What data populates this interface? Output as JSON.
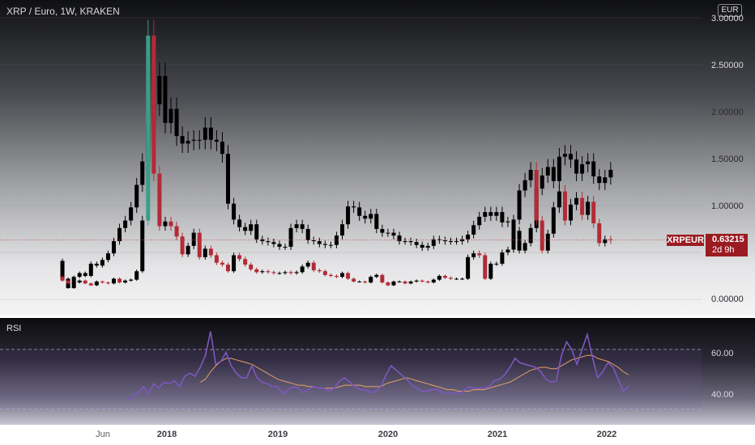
{
  "header": {
    "title": "XRP / Euro, 1W, KRAKEN",
    "currency": "EUR"
  },
  "indicator": {
    "name": "RSI"
  },
  "price_tag": {
    "symbol": "XRPEUR",
    "price": "0.63215",
    "countdown": "2d 9h"
  },
  "colors": {
    "up_candle": "#000000",
    "down_candle": "#b22b35",
    "spike_candle": "#3b9e87",
    "rsi_line": "#7e57c2",
    "rsi_ma": "#e6a068",
    "last_price_line": "#c0525a"
  },
  "chart_data": [
    {
      "type": "line",
      "series": [
        {
          "values": [
            0.41,
            0.22,
            0.12,
            0.24,
            0.28,
            0.25,
            0.38,
            0.36,
            0.42,
            0.49,
            0.62,
            0.76,
            0.84,
            0.98,
            1.22,
            1.47,
            1.85,
            2.08,
            2.38,
            1.88,
            2.03,
            1.74,
            1.66,
            1.69,
            1.7,
            1.7,
            1.83,
            1.7,
            1.68,
            1.55,
            1.02,
            0.85,
            0.77,
            0.73,
            0.8,
            0.64,
            0.62,
            0.61,
            0.59,
            0.56,
            0.56,
            0.76,
            0.8,
            0.75,
            0.63,
            0.62,
            0.59,
            0.58,
            0.58,
            0.68,
            0.8,
            0.99,
            0.98,
            0.89,
            0.86,
            0.91,
            0.75,
            0.71,
            0.71,
            0.68,
            0.62,
            0.62,
            0.61,
            0.58,
            0.55,
            0.57,
            0.64,
            0.63,
            0.62,
            0.62,
            0.62,
            0.64,
            0.69,
            0.79,
            0.88,
            0.93,
            0.89,
            0.93,
            0.82,
            0.83,
            0.73,
            0.52,
            0.6,
            0.76,
            1.18,
            1.32,
            1.41,
            1.26,
            1.52,
            1.55,
            1.49,
            1.34,
            1.44,
            1.47,
            1.31,
            1.24,
            1.3,
            1.38
          ]
        },
        {
          "values": [
            0.24,
            0.2,
            0.17,
            0.18,
            0.2,
            0.17,
            0.15,
            0.19,
            0.18,
            0.17,
            0.22,
            0.18,
            0.2,
            0.21,
            0.3,
            0.84,
            2.81,
            1.34,
            0.78,
            0.83,
            0.78,
            0.67,
            0.48,
            0.57,
            0.71,
            0.45,
            0.54,
            0.47,
            0.39,
            0.37,
            0.3,
            0.47,
            0.43,
            0.37,
            0.32,
            0.29,
            0.3,
            0.29,
            0.28,
            0.28,
            0.29,
            0.28,
            0.29,
            0.35,
            0.39,
            0.31,
            0.3,
            0.26,
            0.25,
            0.24,
            0.28,
            0.22,
            0.19,
            0.19,
            0.18,
            0.24,
            0.26,
            0.18,
            0.15,
            0.19,
            0.19,
            0.17,
            0.19,
            0.2,
            0.19,
            0.18,
            0.21,
            0.25,
            0.23,
            0.22,
            0.22,
            0.22,
            0.45,
            0.49,
            0.47,
            0.22,
            0.38,
            0.38,
            0.5,
            0.53,
            0.85,
            1.16,
            1.27,
            1.38,
            0.84,
            0.52,
            0.7,
            0.98,
            1.15,
            0.84,
            1.01,
            1.08,
            0.9,
            1.04,
            0.81,
            0.6,
            0.64,
            0.63
          ]
        }
      ],
      "ylim": [
        0,
        3.0
      ],
      "y_ticks": [
        "0.00000",
        "0.50000",
        "1.00000",
        "1.50000",
        "2.00000",
        "2.50000",
        "3.00000"
      ],
      "x_ticks": [
        "Jun",
        "2018",
        "2019",
        "2020",
        "2021",
        "2022"
      ],
      "last_price": 0.63215
    },
    {
      "type": "line",
      "series": [
        {
          "values": [
            36,
            39,
            41,
            45,
            40,
            47,
            44,
            48,
            47,
            49,
            45,
            52,
            54,
            52,
            58,
            66,
            82,
            60,
            62,
            68,
            59,
            54,
            51,
            51,
            59,
            51,
            48,
            47,
            45,
            45,
            40,
            43,
            45,
            44,
            41,
            43,
            45,
            44,
            44,
            42,
            44,
            49,
            51,
            48,
            45,
            43,
            43,
            41,
            42,
            45,
            53,
            59,
            56,
            53,
            50,
            46,
            44,
            42,
            42,
            43,
            43,
            41,
            40,
            41,
            40,
            42,
            45,
            44,
            44,
            44,
            45,
            49,
            50,
            53,
            58,
            64,
            61,
            60,
            59,
            58,
            55,
            50,
            48,
            49,
            66,
            75,
            70,
            60,
            70,
            80,
            65,
            51,
            55,
            61,
            58,
            50,
            42,
            45
          ]
        },
        {
          "values": [
            null,
            null,
            null,
            null,
            null,
            null,
            null,
            null,
            null,
            null,
            null,
            null,
            null,
            null,
            48,
            50,
            55,
            59,
            62,
            64,
            64,
            63,
            62,
            61,
            60,
            58,
            56,
            54,
            52,
            50,
            49,
            48,
            47,
            46,
            46,
            45,
            45,
            44,
            44,
            44,
            44,
            45,
            46,
            46,
            46,
            46,
            45,
            45,
            45,
            45,
            47,
            48,
            49,
            50,
            51,
            50,
            49,
            48,
            47,
            46,
            45,
            44,
            43,
            43,
            42,
            42,
            42,
            43,
            43,
            43,
            44,
            45,
            46,
            47,
            48,
            50,
            52,
            54,
            56,
            57,
            58,
            58,
            57,
            57,
            59,
            61,
            63,
            64,
            65,
            66,
            66,
            64,
            63,
            62,
            60,
            58,
            55,
            53
          ]
        }
      ],
      "ylim": [
        20,
        90
      ],
      "y_ticks": [
        "40.00",
        "60.00"
      ]
    }
  ]
}
